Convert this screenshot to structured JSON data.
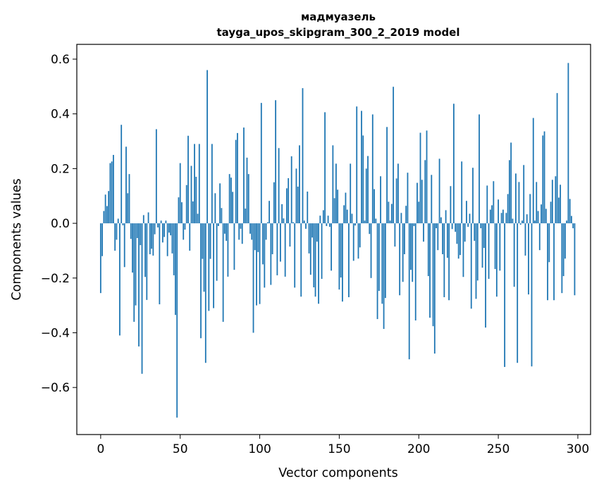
{
  "chart_data": {
    "type": "bar",
    "title": "мадмуазель",
    "subtitle": "tayga_upos_skipgram_300_2_2019 model",
    "xlabel": "Vector components",
    "ylabel": "Components values",
    "xlim": [
      -15,
      308
    ],
    "ylim": [
      -0.772,
      0.654
    ],
    "xticks": [
      0,
      50,
      100,
      150,
      200,
      250,
      300
    ],
    "xtick_labels": [
      "0",
      "50",
      "100",
      "150",
      "200",
      "250",
      "300"
    ],
    "yticks": [
      -0.6,
      -0.4,
      -0.2,
      0.0,
      0.2,
      0.4,
      0.6
    ],
    "ytick_labels": [
      "−0.6",
      "−0.4",
      "−0.2",
      "0.0",
      "0.2",
      "0.4",
      "0.6"
    ],
    "grid": false,
    "bar_color": "#1f77b4",
    "values": [
      -0.255,
      -0.12,
      0.045,
      0.105,
      0.063,
      0.118,
      0.22,
      0.226,
      0.25,
      -0.1,
      -0.06,
      0.017,
      -0.41,
      0.36,
      -0.007,
      -0.16,
      0.28,
      0.11,
      0.18,
      -0.057,
      -0.18,
      -0.36,
      -0.3,
      -0.054,
      -0.45,
      -0.08,
      -0.55,
      0.03,
      -0.196,
      -0.28,
      0.04,
      -0.113,
      -0.093,
      -0.118,
      -0.04,
      0.344,
      -0.015,
      -0.296,
      0.01,
      -0.07,
      -0.05,
      0.01,
      -0.12,
      -0.034,
      -0.044,
      -0.11,
      -0.19,
      -0.335,
      -0.71,
      0.095,
      0.22,
      0.077,
      -0.06,
      -0.023,
      0.14,
      0.32,
      -0.1,
      0.21,
      0.08,
      0.29,
      0.17,
      0.035,
      0.29,
      -0.42,
      -0.13,
      -0.25,
      -0.51,
      0.56,
      -0.32,
      -0.13,
      0.29,
      -0.31,
      0.11,
      -0.21,
      -0.01,
      0.146,
      0.056,
      -0.36,
      -0.038,
      -0.064,
      -0.195,
      0.18,
      0.167,
      0.115,
      -0.17,
      0.305,
      0.33,
      -0.06,
      -0.02,
      -0.075,
      0.35,
      0.054,
      0.24,
      0.18,
      -0.038,
      -0.06,
      -0.4,
      -0.098,
      -0.3,
      -0.105,
      -0.295,
      0.44,
      -0.15,
      -0.235,
      -0.06,
      0.004,
      0.082,
      -0.225,
      -0.113,
      0.15,
      0.45,
      -0.19,
      0.275,
      -0.14,
      0.07,
      0.018,
      -0.195,
      0.128,
      0.165,
      -0.085,
      0.245,
      0.004,
      -0.235,
      0.2,
      0.134,
      0.285,
      -0.268,
      0.494,
      0.01,
      -0.02,
      0.116,
      -0.11,
      -0.188,
      -0.052,
      -0.234,
      -0.268,
      -0.067,
      -0.294,
      0.028,
      -0.203,
      0.048,
      0.406,
      -0.01,
      0.028,
      -0.013,
      -0.173,
      0.285,
      0.092,
      0.218,
      0.123,
      -0.242,
      -0.198,
      -0.286,
      0.066,
      0.112,
      0.05,
      -0.27,
      0.218,
      0.035,
      -0.137,
      -0.008,
      0.427,
      -0.129,
      -0.088,
      0.411,
      0.321,
      0.01,
      0.2,
      0.246,
      -0.039,
      -0.2,
      0.398,
      0.125,
      0.017,
      -0.35,
      -0.247,
      0.172,
      -0.294,
      -0.386,
      -0.273,
      0.352,
      0.079,
      0.01,
      0.071,
      0.499,
      -0.085,
      0.164,
      0.218,
      -0.263,
      0.038,
      -0.214,
      -0.113,
      0.064,
      0.185,
      -0.497,
      -0.17,
      -0.214,
      -0.01,
      -0.355,
      0.148,
      0.079,
      0.331,
      0.159,
      -0.067,
      0.231,
      0.339,
      -0.193,
      -0.345,
      0.177,
      -0.376,
      -0.476,
      -0.018,
      -0.098,
      0.236,
      0.022,
      -0.113,
      -0.27,
      0.048,
      -0.126,
      -0.281,
      0.136,
      -0.021,
      0.437,
      -0.031,
      -0.075,
      -0.129,
      -0.116,
      0.226,
      -0.196,
      -0.067,
      0.082,
      -0.013,
      0.035,
      -0.312,
      0.203,
      -0.064,
      -0.276,
      -0.209,
      0.398,
      -0.018,
      -0.162,
      -0.09,
      -0.381,
      0.138,
      -0.203,
      0.05,
      0.066,
      0.154,
      -0.167,
      -0.268,
      0.087,
      -0.173,
      0.038,
      0.05,
      -0.525,
      0.038,
      0.107,
      0.231,
      0.295,
      0.017,
      -0.232,
      0.182,
      -0.51,
      0.151,
      -0.005,
      0.01,
      0.213,
      -0.118,
      0.033,
      -0.26,
      0.107,
      -0.523,
      0.385,
      0.01,
      0.151,
      0.045,
      -0.098,
      0.069,
      0.321,
      0.336,
      0.053,
      -0.281,
      -0.142,
      0.079,
      0.159,
      -0.281,
      0.172,
      0.476,
      0.094,
      0.141,
      -0.255,
      -0.193,
      -0.129,
      0.01,
      0.586,
      0.089,
      0.027,
      -0.018,
      -0.263
    ]
  }
}
